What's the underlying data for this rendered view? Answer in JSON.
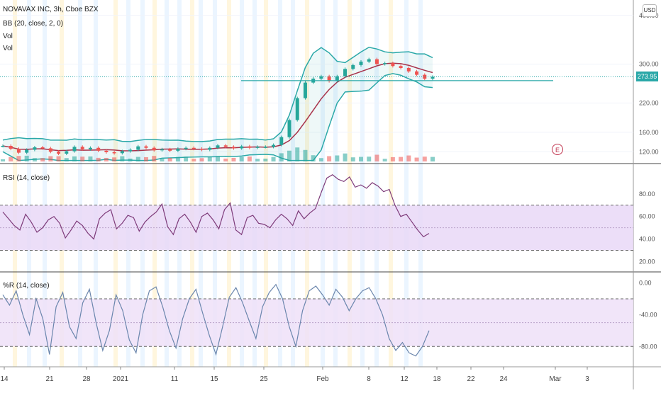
{
  "header": {
    "symbol": "NOVAVAX INC, 3h, Cboe BZX",
    "bb_label": "BB (20, close, 2, 0)",
    "vol_label_1": "Vol",
    "vol_label_2": "Vol",
    "currency": "USD",
    "last_price": "273.95",
    "earnings_marker": "E"
  },
  "colors": {
    "up": "#26a69a",
    "down": "#ef5350",
    "bb_band": "#2aa8a8",
    "bb_basis": "#a8324a",
    "rsi": "#7e3b7a",
    "willr": "#6b86ad",
    "rsi_bg": "#e9d8f7",
    "willr_bg": "#efe1f8",
    "price_tag": "#2aa8a8"
  },
  "chart_data": [
    {
      "type": "candlestick",
      "title": "NOVAVAX INC, 3h, Cboe BZX",
      "y_ticks": [
        "400.00",
        "300.00",
        "220.00",
        "160.00",
        "120.00"
      ],
      "ylim": [
        100,
        420
      ],
      "x_ticks": [
        "14",
        "21",
        "28",
        "2021",
        "11",
        "15",
        "25",
        "Feb",
        "8",
        "12",
        "18",
        "22",
        "24",
        "Mar",
        "3"
      ],
      "price_series": [
        {
          "x": 0,
          "close": 132
        },
        {
          "x": 1,
          "close": 126
        },
        {
          "x": 2,
          "close": 118
        },
        {
          "x": 3,
          "close": 124
        },
        {
          "x": 4,
          "close": 129
        },
        {
          "x": 5,
          "close": 127
        },
        {
          "x": 6,
          "close": 120
        },
        {
          "x": 7,
          "close": 116
        },
        {
          "x": 8,
          "close": 121
        },
        {
          "x": 9,
          "close": 130
        },
        {
          "x": 10,
          "close": 125
        },
        {
          "x": 11,
          "close": 128
        },
        {
          "x": 12,
          "close": 122
        },
        {
          "x": 13,
          "close": 119
        },
        {
          "x": 14,
          "close": 117
        },
        {
          "x": 15,
          "close": 121
        },
        {
          "x": 16,
          "close": 124
        },
        {
          "x": 17,
          "close": 131
        },
        {
          "x": 18,
          "close": 128
        },
        {
          "x": 19,
          "close": 123
        },
        {
          "x": 20,
          "close": 125
        },
        {
          "x": 21,
          "close": 122
        },
        {
          "x": 22,
          "close": 126
        },
        {
          "x": 23,
          "close": 128
        },
        {
          "x": 24,
          "close": 126
        },
        {
          "x": 25,
          "close": 124
        },
        {
          "x": 26,
          "close": 128
        },
        {
          "x": 27,
          "close": 133
        },
        {
          "x": 28,
          "close": 130
        },
        {
          "x": 29,
          "close": 127
        },
        {
          "x": 30,
          "close": 131
        },
        {
          "x": 31,
          "close": 128
        },
        {
          "x": 32,
          "close": 130
        },
        {
          "x": 33,
          "close": 130
        },
        {
          "x": 34,
          "close": 134
        },
        {
          "x": 35,
          "close": 150
        },
        {
          "x": 36,
          "close": 185
        },
        {
          "x": 37,
          "close": 230
        },
        {
          "x": 38,
          "close": 262
        },
        {
          "x": 39,
          "close": 270
        },
        {
          "x": 40,
          "close": 275
        },
        {
          "x": 41,
          "close": 265
        },
        {
          "x": 42,
          "close": 275
        },
        {
          "x": 43,
          "close": 290
        },
        {
          "x": 44,
          "close": 298
        },
        {
          "x": 45,
          "close": 305
        },
        {
          "x": 46,
          "close": 310
        },
        {
          "x": 47,
          "close": 300
        },
        {
          "x": 48,
          "close": 302
        },
        {
          "x": 49,
          "close": 296
        },
        {
          "x": 50,
          "close": 292
        },
        {
          "x": 51,
          "close": 285
        },
        {
          "x": 52,
          "close": 278
        },
        {
          "x": 53,
          "close": 270
        },
        {
          "x": 54,
          "close": 274
        }
      ],
      "bb": {
        "upper_end": 310,
        "basis_end": 295,
        "lower_end": 264
      },
      "horizontal_line": 266
    },
    {
      "type": "line",
      "title": "RSI (14, close)",
      "y_ticks": [
        "80.00",
        "60.00",
        "40.00",
        "20.00"
      ],
      "ylim": [
        14,
        100
      ],
      "bands": [
        70,
        50,
        30
      ],
      "values": [
        64,
        58,
        52,
        48,
        62,
        55,
        46,
        50,
        57,
        60,
        54,
        41,
        48,
        56,
        52,
        45,
        40,
        58,
        63,
        66,
        49,
        54,
        61,
        59,
        47,
        55,
        60,
        64,
        71,
        51,
        44,
        58,
        62,
        55,
        46,
        60,
        63,
        57,
        49,
        66,
        72,
        48,
        44,
        59,
        61,
        54,
        53,
        50,
        57,
        62,
        58,
        52,
        65,
        58,
        63,
        67,
        81,
        94,
        97,
        93,
        91,
        95,
        86,
        88,
        85,
        90,
        87,
        82,
        84,
        70,
        60,
        62,
        55,
        48,
        42,
        45
      ]
    },
    {
      "type": "line",
      "title": "%R (14, close)",
      "y_ticks": [
        "0.00",
        "-40.00",
        "-80.00"
      ],
      "ylim": [
        -102,
        4
      ],
      "bands": [
        -20,
        -50,
        -80
      ],
      "values": [
        -15,
        -28,
        -10,
        -40,
        -65,
        -20,
        -45,
        -90,
        -30,
        -12,
        -55,
        -70,
        -25,
        -8,
        -50,
        -85,
        -60,
        -15,
        -35,
        -72,
        -88,
        -40,
        -10,
        -5,
        -30,
        -60,
        -82,
        -45,
        -20,
        -8,
        -38,
        -66,
        -90,
        -55,
        -18,
        -6,
        -25,
        -48,
        -70,
        -30,
        -12,
        -2,
        -20,
        -55,
        -80,
        -35,
        -10,
        -4,
        -15,
        -28,
        -8,
        -18,
        -35,
        -20,
        -10,
        -6,
        -20,
        -40,
        -70,
        -85,
        -75,
        -88,
        -92,
        -80,
        -60
      ]
    }
  ]
}
